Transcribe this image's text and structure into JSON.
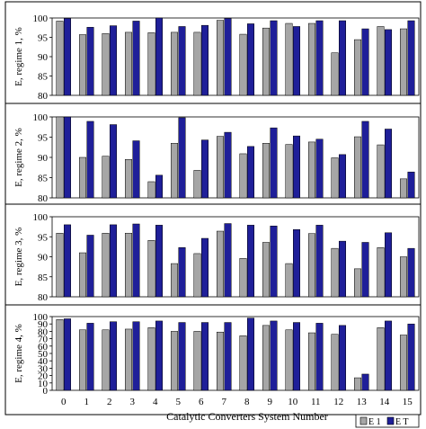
{
  "colors": {
    "e1": "#a6a6a6",
    "et": "#1f1f99",
    "frame": "#000000",
    "bg": "#ffffff"
  },
  "chart_data": [
    {
      "type": "bar",
      "ylabel": "E, regime 1, %",
      "ylim": [
        80,
        100
      ],
      "yticks": [
        80,
        85,
        90,
        95,
        100
      ],
      "categories": [
        "0",
        "1",
        "2",
        "3",
        "4",
        "5",
        "6",
        "7",
        "8",
        "9",
        "10",
        "11",
        "12",
        "13",
        "14",
        "15"
      ],
      "series": [
        {
          "name": "E 1",
          "values": [
            99.2,
            95.7,
            96.0,
            96.3,
            96.2,
            96.3,
            96.3,
            99.4,
            95.8,
            97.4,
            98.6,
            98.6,
            91.0,
            94.4,
            97.8,
            97.2
          ]
        },
        {
          "name": "E T",
          "values": [
            99.9,
            97.6,
            98.0,
            99.2,
            100.0,
            97.8,
            98.1,
            99.9,
            98.5,
            99.3,
            97.8,
            99.3,
            99.3,
            97.2,
            97.0,
            99.3
          ]
        }
      ]
    },
    {
      "type": "bar",
      "ylabel": "E, regime 2, %",
      "ylim": [
        80,
        100
      ],
      "yticks": [
        80,
        85,
        90,
        95,
        100
      ],
      "categories": [
        "0",
        "1",
        "2",
        "3",
        "4",
        "5",
        "6",
        "7",
        "8",
        "9",
        "10",
        "11",
        "12",
        "13",
        "14",
        "15"
      ],
      "series": [
        {
          "name": "E 1",
          "values": [
            100.0,
            90.0,
            90.3,
            89.5,
            84.0,
            93.5,
            86.8,
            95.2,
            90.9,
            93.5,
            93.2,
            93.8,
            89.9,
            95.1,
            93.1,
            84.7
          ]
        },
        {
          "name": "E T",
          "values": [
            100.0,
            98.9,
            98.1,
            94.1,
            85.6,
            99.8,
            94.3,
            96.2,
            92.7,
            97.3,
            95.3,
            94.5,
            90.7,
            98.9,
            97.0,
            86.4
          ]
        }
      ]
    },
    {
      "type": "bar",
      "ylabel": "E, regime 3, %",
      "ylim": [
        80,
        100
      ],
      "yticks": [
        80,
        85,
        90,
        95,
        100
      ],
      "categories": [
        "0",
        "1",
        "2",
        "3",
        "4",
        "5",
        "6",
        "7",
        "8",
        "9",
        "10",
        "11",
        "12",
        "13",
        "14",
        "15"
      ],
      "series": [
        {
          "name": "E 1",
          "values": [
            95.9,
            91.0,
            95.9,
            95.9,
            94.1,
            88.3,
            90.8,
            96.4,
            89.6,
            93.6,
            88.3,
            95.8,
            92.1,
            87.0,
            92.3,
            90.0
          ]
        },
        {
          "name": "E T",
          "values": [
            98.0,
            95.4,
            98.0,
            98.2,
            97.9,
            92.3,
            94.6,
            98.3,
            97.9,
            97.7,
            96.8,
            97.9,
            93.9,
            93.6,
            96.0,
            92.1
          ]
        }
      ]
    },
    {
      "type": "bar",
      "ylabel": "E, regime 4, %",
      "ylim": [
        0,
        100
      ],
      "yticks": [
        0,
        10,
        20,
        30,
        40,
        50,
        60,
        70,
        80,
        90,
        100
      ],
      "categories": [
        "0",
        "1",
        "2",
        "3",
        "4",
        "5",
        "6",
        "7",
        "8",
        "9",
        "10",
        "11",
        "12",
        "13",
        "14",
        "15"
      ],
      "series": [
        {
          "name": "E 1",
          "values": [
            96,
            82,
            82,
            83,
            85,
            80,
            80,
            79,
            74,
            88,
            82,
            78,
            76,
            17,
            85,
            75
          ]
        },
        {
          "name": "E T",
          "values": [
            97,
            91,
            93,
            93,
            94,
            92,
            92,
            92,
            98,
            94,
            92,
            91,
            88,
            22,
            94,
            90
          ]
        }
      ]
    }
  ],
  "xlabel": "Catalytic Converters System Number",
  "legend": {
    "position": "bottom-right",
    "e1_label": "E 1",
    "et_label": "E T"
  }
}
